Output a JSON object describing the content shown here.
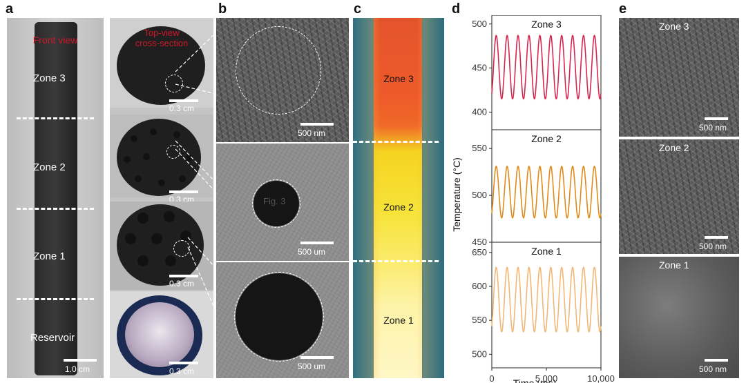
{
  "panels": {
    "a": "a",
    "b": "b",
    "c": "c",
    "d": "d",
    "e": "e"
  },
  "panel_a": {
    "front_view": "Front view",
    "top_view_line1": "Top-view",
    "top_view_line2": "cross-section",
    "zone3": "Zone 3",
    "zone2": "Zone 2",
    "zone1": "Zone 1",
    "reservoir": "Reservoir",
    "scale_rod": "1.0 cm",
    "scale_disk": "0.3 cm"
  },
  "panel_b": {
    "scale_top": "500 nm",
    "scale_mid": "500 um",
    "scale_bot": "500 um",
    "fig_ref": "Fig. 3"
  },
  "panel_c": {
    "zone3": "Zone 3",
    "zone2": "Zone 2",
    "zone1": "Zone 1"
  },
  "panel_e": {
    "zone3": "Zone 3",
    "zone2": "Zone 2",
    "zone1": "Zone 1",
    "scale": "500 nm"
  },
  "colors": {
    "zone3": "#d6264f",
    "zone2": "#e08a1a",
    "zone1": "#f2b774",
    "front_view_text": "#d0182a"
  },
  "chart_data": {
    "type": "line",
    "xlabel": "Time (ms)",
    "ylabel": "Temperature (°C)",
    "xticks": [
      "0",
      "5,000",
      "10,000"
    ],
    "xlim": [
      0,
      10000
    ],
    "series": [
      {
        "name": "Zone 3",
        "period_ms": 1000,
        "min": 415,
        "max": 487,
        "ylim": [
          380,
          510
        ],
        "yticks": [
          "400",
          "450",
          "500"
        ]
      },
      {
        "name": "Zone 2",
        "period_ms": 1000,
        "min": 476,
        "max": 531,
        "ylim": [
          450,
          570
        ],
        "yticks": [
          "450",
          "500",
          "550"
        ]
      },
      {
        "name": "Zone 1",
        "period_ms": 1000,
        "min": 533,
        "max": 628,
        "ylim": [
          480,
          665
        ],
        "yticks": [
          "500",
          "550",
          "600",
          "650"
        ]
      }
    ]
  }
}
